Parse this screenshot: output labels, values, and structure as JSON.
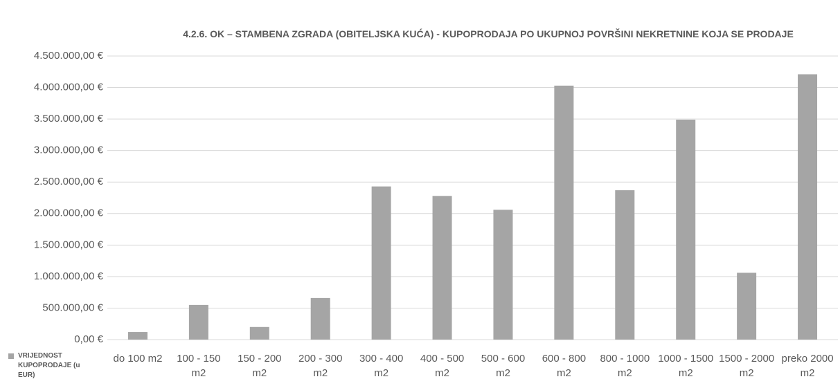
{
  "chart_data": {
    "type": "bar",
    "title": "4.2.6. OK – STAMBENA ZGRADA (OBITELJSKA KUĆA) - KUPOPRODAJA PO UKUPNOJ POVRŠINI NEKRETNINE KOJA SE PRODAJE",
    "categories": [
      "do 100 m2",
      "100 - 150 m2",
      "150 - 200 m2",
      "200 - 300 m2",
      "300 - 400 m2",
      "400 - 500 m2",
      "500 - 600 m2",
      "600 - 800 m2",
      "800 - 1000 m2",
      "1000 - 1500 m2",
      "1500 - 2000 m2",
      "preko 2000 m2"
    ],
    "series": [
      {
        "name": "VRIJEDNOST KUPOPRODAJE (u EUR)",
        "color": "#a5a5a5",
        "values": [
          120000,
          550000,
          200000,
          660000,
          2430000,
          2280000,
          2060000,
          4030000,
          2370000,
          3490000,
          1060000,
          4210000
        ]
      }
    ],
    "ylim": [
      0,
      4500000
    ],
    "yticks": [
      {
        "value": 0,
        "label": "0,00 €"
      },
      {
        "value": 500000,
        "label": "500.000,00 €"
      },
      {
        "value": 1000000,
        "label": "1.000.000,00 €"
      },
      {
        "value": 1500000,
        "label": "1.500.000,00 €"
      },
      {
        "value": 2000000,
        "label": "2.000.000,00 €"
      },
      {
        "value": 2500000,
        "label": "2.500.000,00 €"
      },
      {
        "value": 3000000,
        "label": "3.000.000,00 €"
      },
      {
        "value": 3500000,
        "label": "3.500.000,00 €"
      },
      {
        "value": 4000000,
        "label": "4.000.000,00 €"
      },
      {
        "value": 4500000,
        "label": "4.500.000,00 €"
      }
    ],
    "grid": true,
    "legend": "bottom-left"
  }
}
